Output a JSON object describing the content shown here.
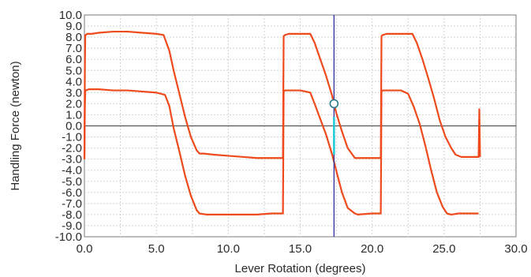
{
  "chart_data": {
    "type": "line",
    "xlabel": "Lever Rotation (degrees)",
    "ylabel": "Handling Force (newton)",
    "xlim": [
      0,
      30
    ],
    "ylim": [
      -10,
      10
    ],
    "x_ticks": [
      "0.0",
      "5.0",
      "10.0",
      "15.0",
      "20.0",
      "25.0",
      "30.0"
    ],
    "y_ticks": [
      "10.0",
      "9.0",
      "8.0",
      "7.0",
      "6.0",
      "5.0",
      "4.0",
      "3.0",
      "2.0",
      "1.0",
      "0.0",
      "-1.0",
      "-2.0",
      "-3.0",
      "-4.0",
      "-5.0",
      "-6.0",
      "-7.0",
      "-8.0",
      "-9.0",
      "-10.0"
    ],
    "grid": true,
    "zero_line": true,
    "cursor": {
      "x": 17.35,
      "marker_y": 2.0,
      "highlight_y": [
        -2.6,
        0.8
      ],
      "color": "#3a3aa0",
      "marker_color": "#2a7a8a",
      "highlight_color": "#14c8d8"
    },
    "series": [
      {
        "color": "#ee4a1c",
        "x": [
          0.0,
          0.03,
          0.06,
          0.1,
          0.2,
          0.5,
          1.0,
          2.0,
          3.0,
          4.0,
          5.0,
          5.5,
          5.9,
          6.2,
          6.6,
          7.0,
          7.4,
          7.8,
          8.0,
          8.3,
          9.0,
          10.0,
          11.0,
          12.0,
          13.0,
          13.8,
          13.85,
          13.95,
          14.2,
          15.0,
          15.7,
          16.0,
          16.4,
          16.8,
          17.2,
          17.5,
          17.9,
          18.3,
          18.8,
          19.0,
          19.5,
          20.0,
          20.6,
          20.65,
          20.75,
          21.0,
          22.0,
          22.8,
          23.1,
          23.5,
          23.9,
          24.3,
          24.7,
          25.1,
          25.5,
          25.8,
          26.2,
          27.0,
          27.4,
          27.45,
          27.5
        ],
        "y": [
          -3.0,
          5.0,
          8.2,
          8.2,
          8.3,
          8.3,
          8.4,
          8.5,
          8.5,
          8.4,
          8.3,
          8.2,
          6.8,
          5.0,
          2.9,
          0.8,
          -1.0,
          -2.2,
          -2.5,
          -2.5,
          -2.6,
          -2.7,
          -2.8,
          -2.9,
          -2.9,
          -2.9,
          8.1,
          8.2,
          8.3,
          8.3,
          8.3,
          7.5,
          6.0,
          4.5,
          2.8,
          1.2,
          -0.5,
          -2.0,
          -2.9,
          -2.9,
          -2.9,
          -2.9,
          -2.9,
          8.1,
          8.2,
          8.3,
          8.3,
          8.3,
          7.5,
          6.0,
          4.3,
          2.5,
          0.5,
          -1.0,
          -2.0,
          -2.6,
          -2.8,
          -2.8,
          -2.8,
          1.5,
          -2.8
        ]
      },
      {
        "color": "#ee4a1c",
        "x": [
          0.0,
          0.03,
          0.06,
          0.1,
          0.3,
          1.0,
          2.0,
          3.0,
          4.0,
          5.0,
          5.6,
          5.9,
          6.2,
          6.6,
          7.0,
          7.4,
          7.8,
          8.0,
          8.5,
          9.0,
          10.0,
          11.0,
          12.0,
          13.0,
          13.8,
          13.85,
          13.95,
          14.2,
          15.0,
          15.7,
          16.0,
          16.4,
          16.8,
          17.2,
          17.6,
          17.9,
          18.3,
          18.8,
          19.0,
          20.0,
          20.6,
          20.65,
          20.75,
          21.0,
          22.0,
          22.5,
          22.9,
          23.3,
          23.7,
          24.1,
          24.5,
          24.9,
          25.2,
          25.5,
          26.0,
          27.0,
          27.4
        ],
        "y": [
          -3.0,
          1.5,
          3.2,
          3.2,
          3.3,
          3.3,
          3.2,
          3.2,
          3.1,
          3.0,
          2.8,
          1.8,
          -0.2,
          -2.3,
          -4.5,
          -6.3,
          -7.6,
          -7.9,
          -8.0,
          -8.0,
          -8.0,
          -8.0,
          -8.0,
          -7.9,
          -7.9,
          3.1,
          3.2,
          3.2,
          3.2,
          3.0,
          2.0,
          0.6,
          -0.8,
          -2.5,
          -4.5,
          -6.0,
          -7.4,
          -7.9,
          -8.0,
          -7.9,
          -7.9,
          3.1,
          3.2,
          3.2,
          3.2,
          2.9,
          1.7,
          0.2,
          -1.8,
          -4.0,
          -6.0,
          -7.3,
          -7.9,
          -8.0,
          -7.9,
          -7.9,
          -7.9
        ]
      }
    ]
  }
}
